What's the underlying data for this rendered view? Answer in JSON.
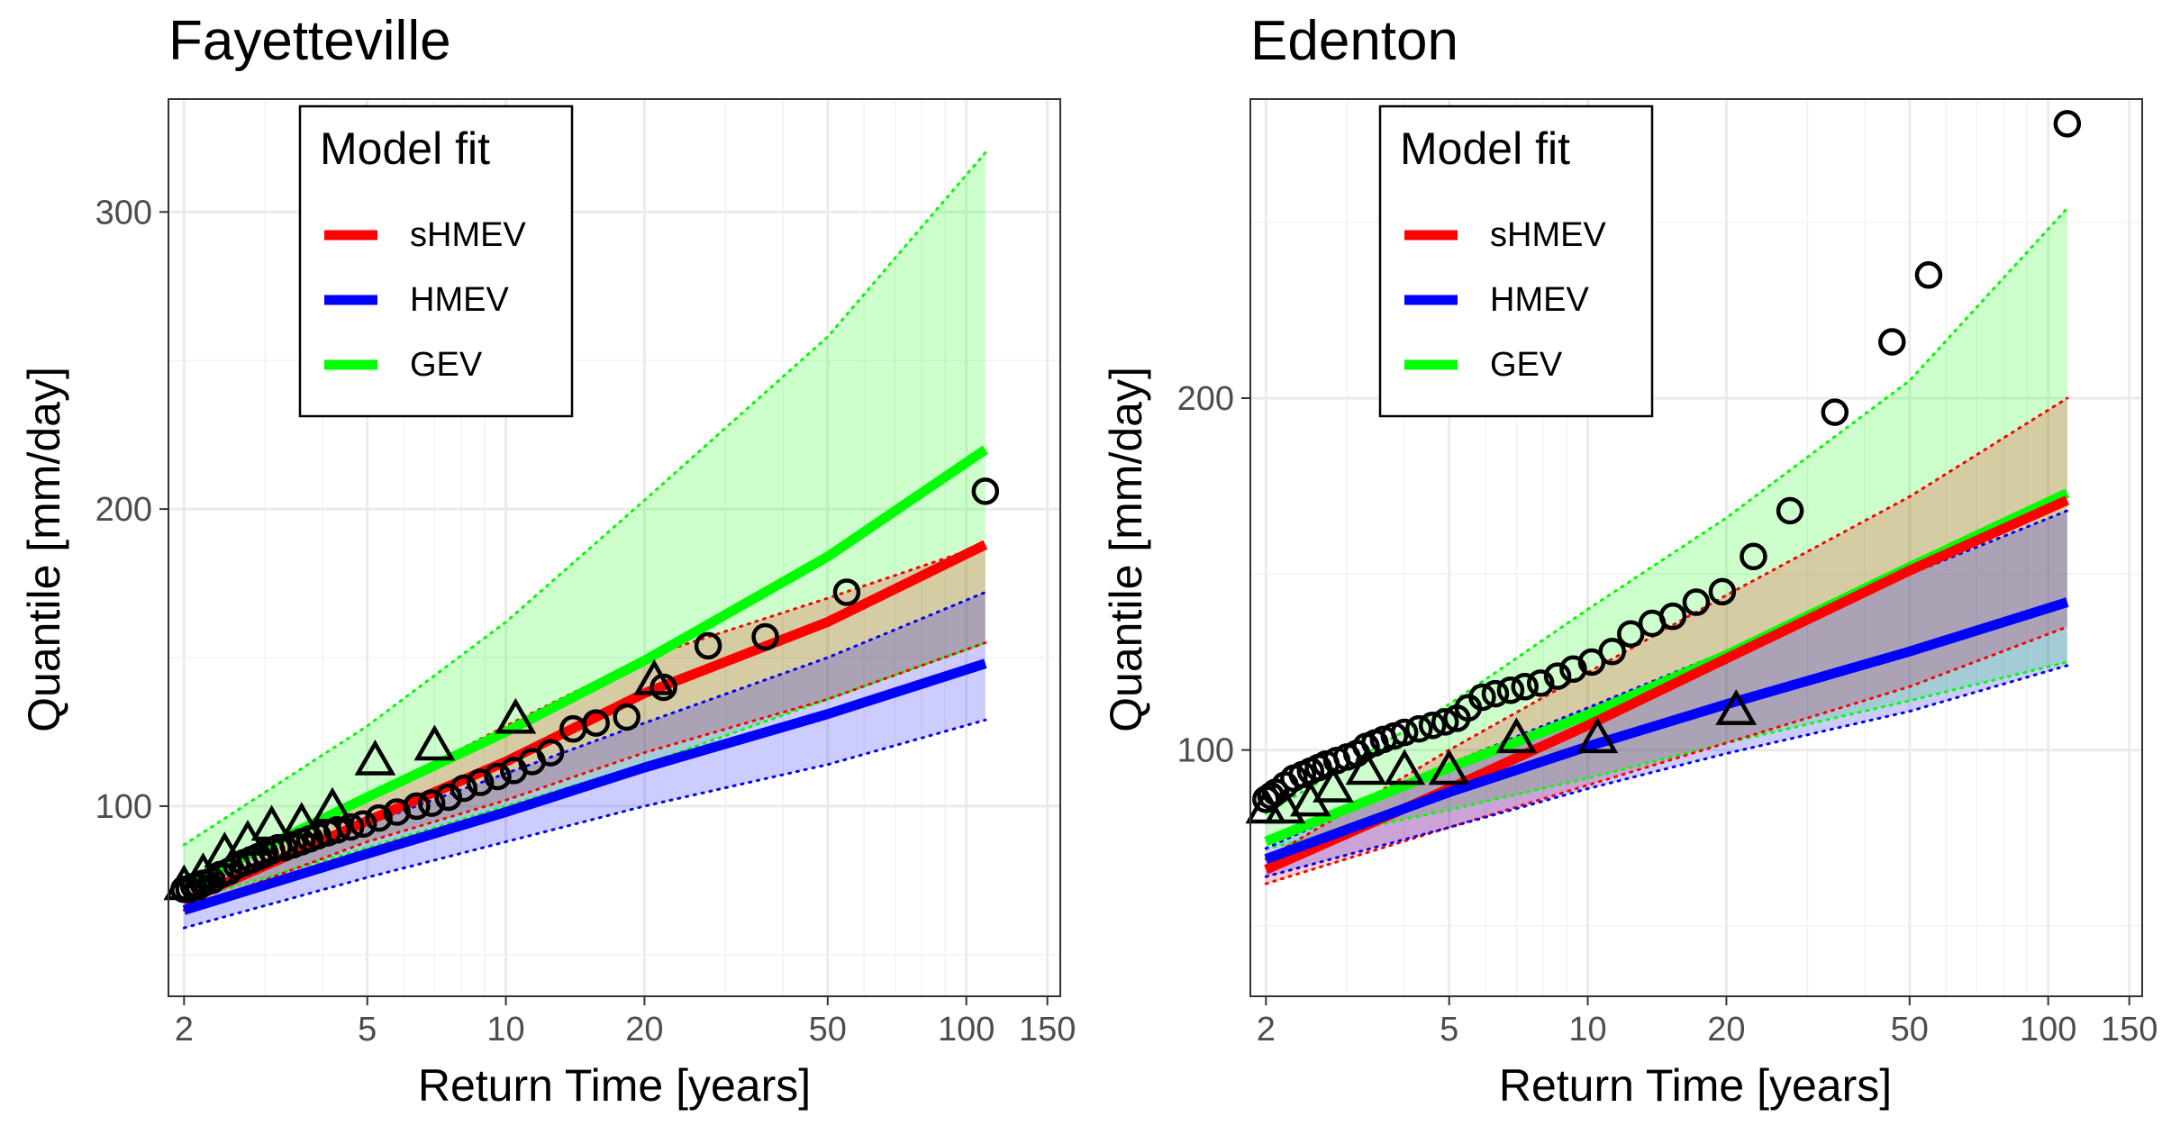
{
  "legend_title": "Model fit",
  "legend_items": [
    {
      "label": "sHMEV",
      "color": "#ff0000"
    },
    {
      "label": "HMEV",
      "color": "#0000ff"
    },
    {
      "label": "GEV",
      "color": "#00ff00"
    }
  ],
  "chart_data": [
    {
      "type": "line",
      "title": "Fayetteville",
      "xlabel": "Return Time [years]",
      "ylabel": "Quantile [mm/day]",
      "x_scale": "log",
      "xlim": [
        1.85,
        160
      ],
      "ylim": [
        36,
        338
      ],
      "x_ticks": [
        2,
        5,
        10,
        20,
        50,
        100,
        150
      ],
      "y_ticks": [
        100,
        200,
        300
      ],
      "grid": true,
      "legend_position": "top-left",
      "series": [
        {
          "name": "sHMEV",
          "color": "#ff0000",
          "x": [
            2,
            5,
            10,
            20,
            50,
            110
          ],
          "values": [
            68,
            95,
            115,
            138,
            162,
            188
          ],
          "lower": [
            65,
            88,
            102,
            118,
            136,
            155
          ],
          "upper": [
            72,
            103,
            127,
            150,
            170,
            188
          ]
        },
        {
          "name": "HMEV",
          "color": "#0000ff",
          "x": [
            2,
            5,
            10,
            20,
            50,
            110
          ],
          "values": [
            65,
            84,
            98,
            113,
            131,
            148
          ],
          "lower": [
            59,
            76,
            88,
            100,
            114,
            129
          ],
          "upper": [
            72,
            94,
            111,
            128,
            150,
            172
          ]
        },
        {
          "name": "GEV",
          "color": "#00ff00",
          "x": [
            2,
            5,
            10,
            20,
            50,
            110
          ],
          "values": [
            73,
            103,
            125,
            149,
            184,
            220
          ],
          "lower": [
            68,
            86,
            100,
            114,
            136,
            155
          ],
          "upper": [
            87,
            127,
            162,
            203,
            258,
            320
          ]
        }
      ],
      "observed_circles": {
        "x": [
          2,
          2.05,
          2.1,
          2.15,
          2.2,
          2.3,
          2.4,
          2.5,
          2.6,
          2.7,
          2.8,
          2.9,
          3.0,
          3.1,
          3.2,
          3.3,
          3.45,
          3.6,
          3.75,
          3.9,
          4.1,
          4.3,
          4.6,
          4.9,
          5.3,
          5.8,
          6.4,
          6.9,
          7.5,
          8.1,
          8.8,
          9.6,
          10.4,
          11.4,
          12.5,
          14.0,
          15.7,
          18.3,
          22.0,
          27.5,
          36.6,
          55.0,
          110.0
        ],
        "y": [
          72,
          72,
          73,
          73,
          74,
          75,
          77,
          78,
          80,
          81,
          82,
          83,
          84,
          85,
          86,
          86,
          87,
          88,
          89,
          90,
          91,
          92,
          93,
          94,
          96,
          98,
          100,
          101,
          103,
          106,
          108,
          110,
          112,
          115,
          118,
          126,
          128,
          130,
          140,
          154,
          157,
          172,
          206
        ]
      },
      "observed_triangles": {
        "x": [
          2.0,
          2.2,
          2.45,
          2.75,
          3.1,
          3.6,
          4.2,
          5.2,
          7.0,
          10.5,
          21.0
        ],
        "y": [
          73,
          77,
          84,
          88,
          93,
          94,
          99,
          115,
          120,
          129,
          142
        ]
      }
    },
    {
      "type": "line",
      "title": "Edenton",
      "xlabel": "Return Time [years]",
      "ylabel": "Quantile [mm/day]",
      "x_scale": "log",
      "xlim": [
        1.85,
        160
      ],
      "ylim": [
        30,
        285
      ],
      "x_ticks": [
        2,
        5,
        10,
        20,
        50,
        100,
        150
      ],
      "y_ticks": [
        100,
        200
      ],
      "grid": true,
      "legend_position": "top-left",
      "series": [
        {
          "name": "sHMEV",
          "color": "#ff0000",
          "x": [
            2,
            5,
            10,
            20,
            50,
            110
          ],
          "values": [
            66,
            89,
            107,
            126,
            151,
            171
          ],
          "lower": [
            62,
            78,
            90,
            102,
            118,
            135
          ],
          "upper": [
            69,
            100,
            122,
            144,
            172,
            200
          ]
        },
        {
          "name": "HMEV",
          "color": "#0000ff",
          "x": [
            2,
            5,
            10,
            20,
            50,
            110
          ],
          "values": [
            69,
            88,
            101,
            113,
            128,
            142
          ],
          "lower": [
            64,
            78,
            89,
            99,
            111,
            124
          ],
          "upper": [
            72,
            96,
            112,
            128,
            150,
            168
          ]
        },
        {
          "name": "GEV",
          "color": "#00ff00",
          "x": [
            2,
            5,
            10,
            20,
            50,
            110
          ],
          "values": [
            74,
            95,
            110,
            127,
            152,
            173
          ],
          "lower": [
            72,
            83,
            92,
            102,
            114,
            125
          ],
          "upper": [
            82,
            113,
            140,
            166,
            205,
            254
          ]
        }
      ],
      "observed_circles": {
        "x": [
          2.0,
          2.05,
          2.1,
          2.2,
          2.3,
          2.4,
          2.5,
          2.6,
          2.7,
          2.85,
          3.0,
          3.15,
          3.3,
          3.45,
          3.6,
          3.8,
          4.0,
          4.3,
          4.6,
          4.9,
          5.2,
          5.5,
          5.9,
          6.3,
          6.8,
          7.3,
          7.9,
          8.6,
          9.3,
          10.2,
          11.3,
          12.4,
          13.8,
          15.3,
          17.2,
          19.6,
          22.9,
          27.5,
          34.4,
          45.8,
          55.0,
          110.0
        ],
        "y": [
          86,
          87,
          88,
          90,
          92,
          93,
          94,
          95,
          96,
          97,
          98,
          99,
          101,
          102,
          103,
          104,
          105,
          106,
          107,
          108,
          109,
          112,
          115,
          116,
          117,
          118,
          119,
          121,
          123,
          125,
          128,
          133,
          136,
          138,
          142,
          145,
          155,
          168,
          196,
          216,
          235,
          278
        ]
      },
      "observed_triangles": {
        "x": [
          2.0,
          2.2,
          2.5,
          2.8,
          3.3,
          4.0,
          5.0,
          7.0,
          10.5,
          21.0
        ],
        "y": [
          83,
          83,
          85,
          89,
          94,
          94,
          94,
          103,
          103,
          111
        ]
      }
    }
  ]
}
